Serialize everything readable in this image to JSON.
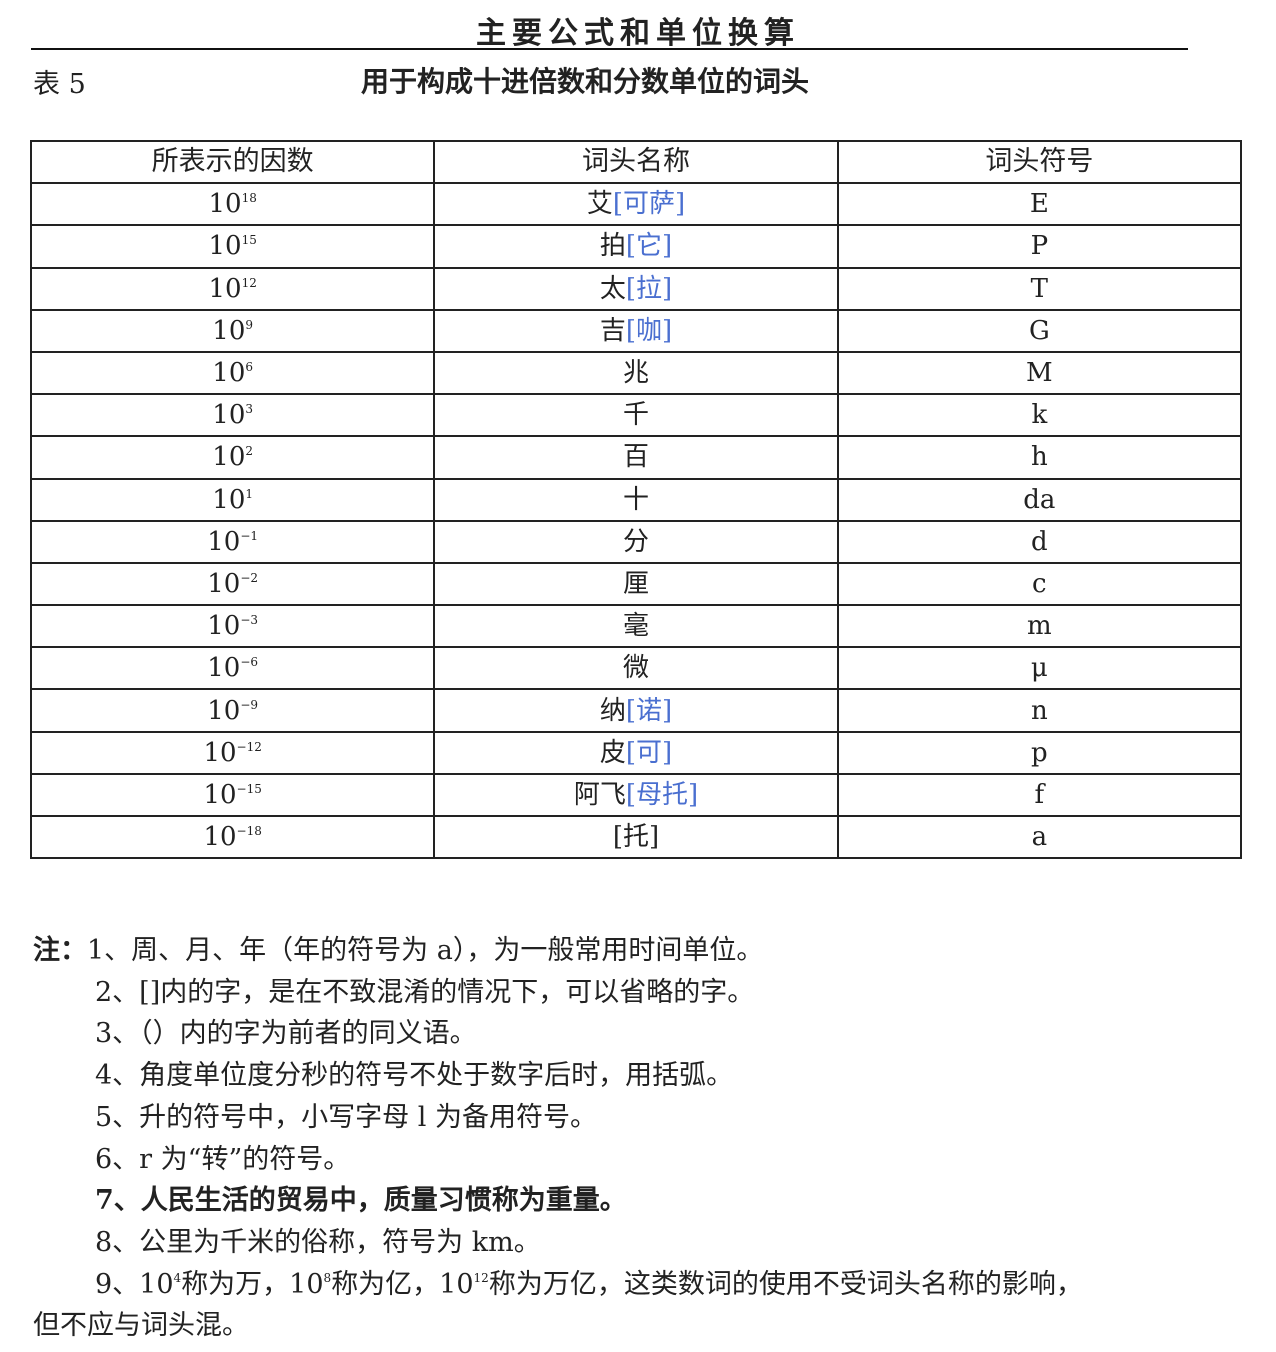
{
  "running_header": "主要公式和单位换算",
  "table_label": "表 5",
  "table_title": "用于构成十进倍数和分数单位的词头",
  "table": {
    "headers": [
      "所表示的因数",
      "词头名称",
      "词头符号"
    ],
    "rows": [
      {
        "base": "10",
        "exp": "18",
        "name": "艾",
        "bracket": "[可萨]",
        "symbol": "E"
      },
      {
        "base": "10",
        "exp": "15",
        "name": "拍",
        "bracket": "[它]",
        "symbol": "P"
      },
      {
        "base": "10",
        "exp": "12",
        "name": "太",
        "bracket": "[拉]",
        "symbol": "T"
      },
      {
        "base": "10",
        "exp": "9",
        "name": "吉",
        "bracket": "[咖]",
        "symbol": "G"
      },
      {
        "base": "10",
        "exp": "6",
        "name": "兆",
        "bracket": "",
        "symbol": "M"
      },
      {
        "base": "10",
        "exp": "3",
        "name": "千",
        "bracket": "",
        "symbol": "k"
      },
      {
        "base": "10",
        "exp": "2",
        "name": "百",
        "bracket": "",
        "symbol": "h"
      },
      {
        "base": "10",
        "exp": "1",
        "name": "十",
        "bracket": "",
        "symbol": "da"
      },
      {
        "base": "10",
        "exp": "−1",
        "name": "分",
        "bracket": "",
        "symbol": "d"
      },
      {
        "base": "10",
        "exp": "−2",
        "name": "厘",
        "bracket": "",
        "symbol": "c"
      },
      {
        "base": "10",
        "exp": "−3",
        "name": "毫",
        "bracket": "",
        "symbol": "m"
      },
      {
        "base": "10",
        "exp": "−6",
        "name": "微",
        "bracket": "",
        "symbol": "μ"
      },
      {
        "base": "10",
        "exp": "−9",
        "name": "纳",
        "bracket": "[诺]",
        "symbol": "n"
      },
      {
        "base": "10",
        "exp": "−12",
        "name": "皮",
        "bracket": "[可]",
        "symbol": "p"
      },
      {
        "base": "10",
        "exp": "−15",
        "name": "阿飞",
        "bracket": "[母托]",
        "symbol": "f"
      },
      {
        "base": "10",
        "exp": "−18",
        "name": "[托]",
        "bracket": "",
        "symbol": "a"
      }
    ],
    "bracket_color": "#4a6fd0"
  },
  "notes": {
    "prefix": "注：",
    "items": [
      "1、周、月、年（年的符号为 a），为一般常用时间单位。",
      "2、[]内的字，是在不致混淆的情况下，可以省略的字。",
      "3、（）内的字为前者的同义语。",
      "4、角度单位度分秒的符号不处于数字后时，用括弧。",
      "5、升的符号中，小写字母 l 为备用符号。",
      "6、r 为“转”的符号。",
      "7、人民生活的贸易中，质量习惯称为重量。",
      "8、公里为千米的俗称，符号为 km。"
    ],
    "item9": {
      "p1": "9、10",
      "e1": "4",
      "p2": "称为万，10",
      "e2": "8",
      "p3": "称为亿，10",
      "e3": "12",
      "p4": "称为万亿，这类数词的使用不受词头名称的影响，",
      "p5": "但不应与词头混。"
    }
  }
}
